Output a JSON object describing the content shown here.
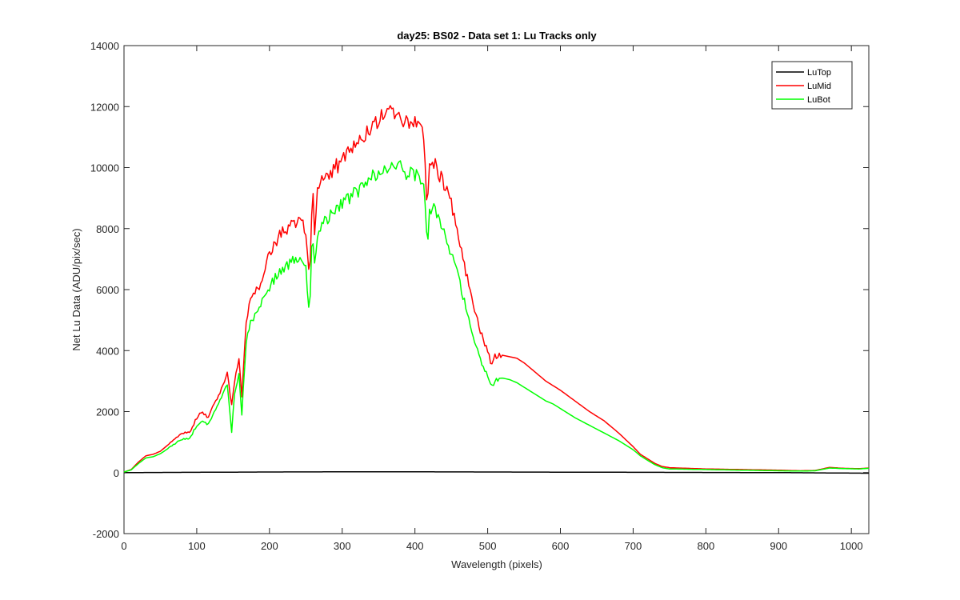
{
  "chart_data": {
    "type": "line",
    "title": "day25: BS02 - Data set 1: Lu Tracks only",
    "xlabel": "Wavelength (pixels)",
    "ylabel": "Net Lu Data (ADU/pix/sec)",
    "xlim": [
      0,
      1024
    ],
    "ylim": [
      -2000,
      14000
    ],
    "xticks": [
      0,
      100,
      200,
      300,
      400,
      500,
      600,
      700,
      800,
      900,
      1000
    ],
    "yticks": [
      -2000,
      0,
      2000,
      4000,
      6000,
      8000,
      10000,
      12000,
      14000
    ],
    "grid": false,
    "legend_position": "top-right",
    "series": [
      {
        "name": "LuTop",
        "color": "#000000",
        "x": [
          0,
          100,
          200,
          300,
          400,
          500,
          600,
          700,
          800,
          900,
          1024
        ],
        "y": [
          0,
          10,
          20,
          25,
          25,
          20,
          15,
          10,
          5,
          0,
          -20
        ]
      },
      {
        "name": "LuMid",
        "color": "#ff0000",
        "x": [
          0,
          10,
          20,
          30,
          40,
          50,
          60,
          70,
          80,
          90,
          100,
          108,
          115,
          125,
          135,
          142,
          148,
          152,
          158,
          162,
          168,
          175,
          185,
          195,
          205,
          215,
          225,
          235,
          245,
          250,
          255,
          259,
          262,
          266,
          272,
          280,
          290,
          300,
          310,
          320,
          330,
          340,
          350,
          360,
          370,
          378,
          385,
          395,
          405,
          412,
          417,
          420,
          425,
          430,
          440,
          450,
          460,
          470,
          480,
          490,
          500,
          505,
          510,
          520,
          530,
          540,
          550,
          560,
          570,
          580,
          590,
          600,
          620,
          640,
          660,
          680,
          700,
          710,
          720,
          730,
          740,
          750,
          800,
          850,
          900,
          930,
          950,
          970,
          990,
          1010,
          1024
        ],
        "y": [
          20,
          100,
          350,
          550,
          600,
          700,
          900,
          1100,
          1300,
          1300,
          1800,
          2000,
          1800,
          2300,
          2800,
          3300,
          2200,
          3000,
          3700,
          2500,
          5000,
          5800,
          6000,
          6900,
          7400,
          7800,
          8000,
          8200,
          8300,
          7800,
          6200,
          9500,
          8000,
          9300,
          9500,
          9700,
          10000,
          10200,
          10500,
          10800,
          11100,
          11400,
          11600,
          11700,
          11800,
          11900,
          11500,
          11600,
          11300,
          11000,
          8700,
          10000,
          10200,
          10000,
          9400,
          8800,
          7800,
          6600,
          5500,
          4600,
          4000,
          3500,
          3800,
          3850,
          3800,
          3750,
          3600,
          3400,
          3200,
          3000,
          2850,
          2700,
          2350,
          2000,
          1700,
          1300,
          850,
          600,
          450,
          300,
          200,
          160,
          120,
          100,
          80,
          60,
          70,
          170,
          140,
          130,
          150
        ]
      },
      {
        "name": "LuBot",
        "color": "#00ff00",
        "x": [
          0,
          10,
          20,
          30,
          40,
          50,
          60,
          70,
          80,
          90,
          100,
          108,
          115,
          125,
          135,
          142,
          148,
          152,
          158,
          162,
          168,
          175,
          185,
          195,
          205,
          215,
          225,
          235,
          245,
          250,
          255,
          259,
          262,
          266,
          272,
          280,
          290,
          300,
          310,
          320,
          330,
          340,
          350,
          360,
          370,
          378,
          385,
          395,
          405,
          412,
          417,
          420,
          425,
          430,
          440,
          450,
          460,
          470,
          480,
          490,
          500,
          505,
          510,
          520,
          530,
          540,
          550,
          560,
          570,
          580,
          590,
          600,
          620,
          640,
          660,
          680,
          700,
          710,
          720,
          730,
          740,
          750,
          800,
          850,
          900,
          930,
          950,
          970,
          990,
          1010,
          1024
        ],
        "y": [
          20,
          90,
          300,
          480,
          520,
          620,
          780,
          950,
          1100,
          1100,
          1550,
          1700,
          1550,
          2000,
          2500,
          2900,
          1300,
          2600,
          3200,
          1900,
          4300,
          5000,
          5300,
          5900,
          6300,
          6600,
          6800,
          7000,
          7100,
          6700,
          5200,
          8000,
          6800,
          7900,
          8100,
          8300,
          8600,
          8800,
          9000,
          9200,
          9400,
          9700,
          9800,
          9900,
          10000,
          10100,
          9800,
          9900,
          9700,
          9400,
          7400,
          8500,
          8700,
          8500,
          7800,
          7200,
          6400,
          5400,
          4500,
          3700,
          3200,
          2800,
          3000,
          3100,
          3050,
          2950,
          2800,
          2650,
          2500,
          2350,
          2250,
          2100,
          1800,
          1550,
          1300,
          1050,
          750,
          550,
          400,
          260,
          160,
          120,
          100,
          80,
          60,
          50,
          60,
          150,
          130,
          120,
          140
        ]
      }
    ]
  }
}
